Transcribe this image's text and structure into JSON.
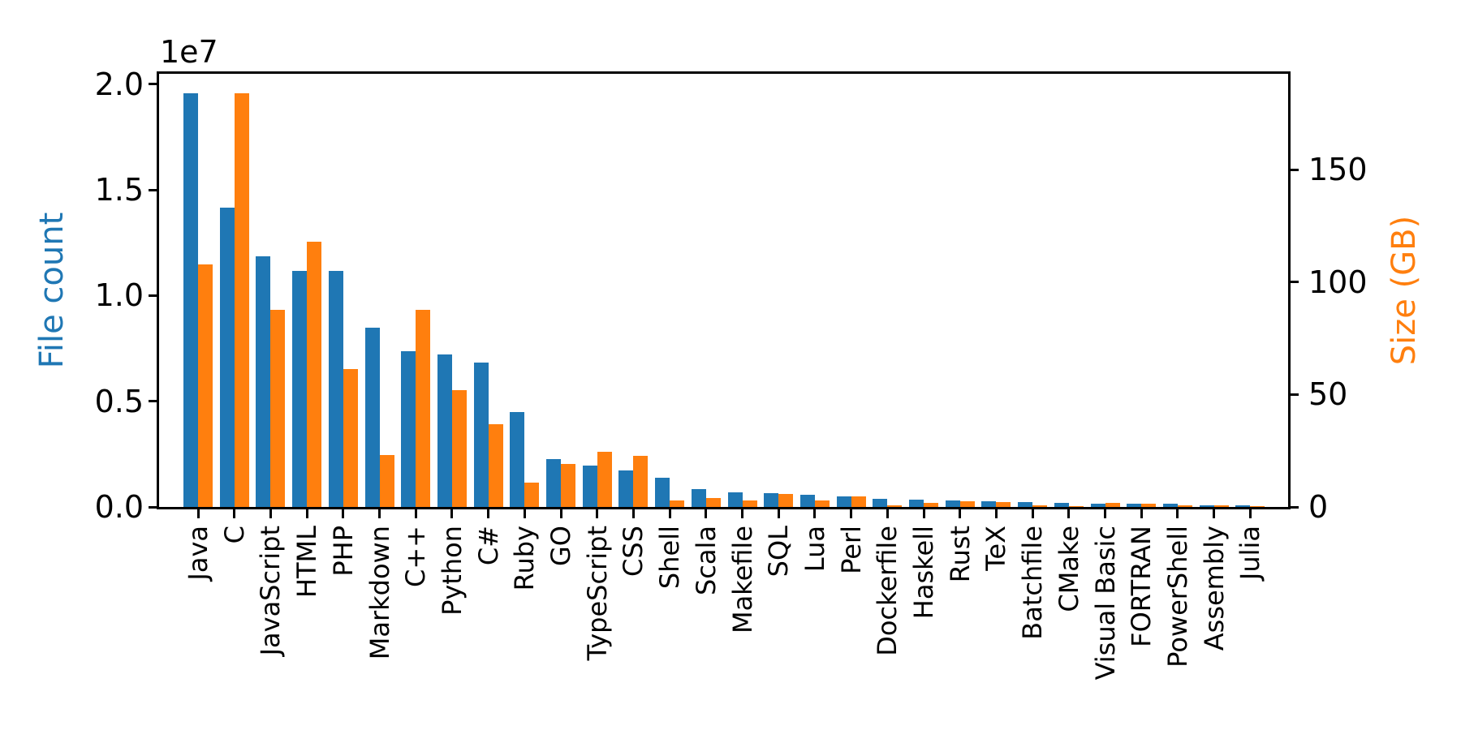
{
  "figure": {
    "background": "#ffffff",
    "axis_color": "#000000"
  },
  "chart_data": {
    "type": "bar",
    "title": "",
    "grid": false,
    "legend": "none",
    "categories": [
      "Java",
      "C",
      "JavaScript",
      "HTML",
      "PHP",
      "Markdown",
      "C++",
      "Python",
      "C#",
      "Ruby",
      "GO",
      "TypeScript",
      "CSS",
      "Shell",
      "Scala",
      "Makefile",
      "SQL",
      "Lua",
      "Perl",
      "Dockerfile",
      "Haskell",
      "Rust",
      "TeX",
      "Batchfile",
      "CMake",
      "Visual Basic",
      "FORTRAN",
      "PowerShell",
      "Assembly",
      "Julia"
    ],
    "series": [
      {
        "name": "File count",
        "axis": "left",
        "color": "#1f77b4",
        "values": [
          19548190,
          14143113,
          11839883,
          11178557,
          11177610,
          8464626,
          7380520,
          7226626,
          6811652,
          4473331,
          2265436,
          1940406,
          1734406,
          1385648,
          835755,
          679430,
          656671,
          578554,
          497949,
          366505,
          340623,
          322431,
          251015,
          236945,
          175282,
          155652,
          142038,
          136846,
          82905,
          58317
        ]
      },
      {
        "name": "Size (GB)",
        "axis": "right",
        "color": "#ff7f0e",
        "values": [
          107.7,
          183.83,
          87.82,
          118.12,
          61.41,
          23.09,
          87.73,
          52.03,
          36.83,
          10.95,
          19.28,
          24.59,
          22.67,
          3.01,
          3.87,
          2.92,
          5.67,
          2.81,
          4.7,
          0.71,
          1.85,
          2.68,
          2.15,
          0.7,
          0.54,
          1.91,
          1.62,
          0.69,
          0.78,
          0.29
        ]
      }
    ],
    "left_axis": {
      "label": "File count",
      "label_color": "#1f77b4",
      "scale_note": "1e7",
      "tick_labels": [
        "0.0",
        "0.5",
        "1.0",
        "1.5",
        "2.0"
      ],
      "tick_values": [
        0,
        5000000,
        10000000,
        15000000,
        20000000
      ],
      "max": 20525600
    },
    "right_axis": {
      "label": "Size (GB)",
      "label_color": "#ff7f0e",
      "tick_labels": [
        "0",
        "50",
        "100",
        "150"
      ],
      "tick_values": [
        0,
        50,
        100,
        150
      ],
      "max": 193.02
    }
  }
}
